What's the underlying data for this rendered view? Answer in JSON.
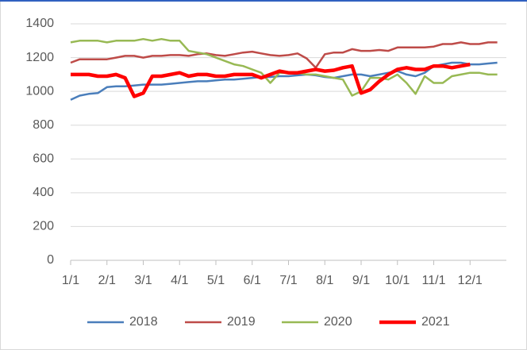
{
  "chart_data": {
    "type": "line",
    "categories": [
      "1/1",
      null,
      null,
      null,
      "2/1",
      null,
      null,
      null,
      "3/1",
      null,
      null,
      null,
      "4/1",
      null,
      null,
      null,
      "5/1",
      null,
      null,
      null,
      "6/1",
      null,
      null,
      null,
      "7/1",
      null,
      null,
      null,
      "8/1",
      null,
      null,
      null,
      "9/1",
      null,
      null,
      null,
      "10/1",
      null,
      null,
      null,
      "11/1",
      null,
      null,
      null,
      "12/1",
      null,
      null,
      null
    ],
    "series": [
      {
        "name": "2018",
        "color": "#4a7ebb",
        "line_width": 2.5,
        "values": [
          950,
          975,
          985,
          990,
          1025,
          1030,
          1030,
          1035,
          1040,
          1040,
          1040,
          1045,
          1050,
          1055,
          1060,
          1060,
          1065,
          1070,
          1070,
          1075,
          1080,
          1085,
          1085,
          1090,
          1090,
          1095,
          1100,
          1095,
          1085,
          1080,
          1090,
          1100,
          1100,
          1090,
          1100,
          1110,
          1120,
          1100,
          1090,
          1110,
          1150,
          1160,
          1170,
          1170,
          1160,
          1160,
          1165,
          1170
        ]
      },
      {
        "name": "2019",
        "color": "#be4b48",
        "line_width": 2.5,
        "values": [
          1170,
          1190,
          1190,
          1190,
          1190,
          1200,
          1210,
          1210,
          1200,
          1210,
          1210,
          1215,
          1215,
          1210,
          1220,
          1225,
          1215,
          1210,
          1220,
          1230,
          1235,
          1225,
          1215,
          1210,
          1215,
          1225,
          1195,
          1140,
          1220,
          1230,
          1230,
          1250,
          1240,
          1240,
          1245,
          1240,
          1260,
          1260,
          1260,
          1260,
          1265,
          1280,
          1280,
          1290,
          1280,
          1280,
          1290,
          1290
        ]
      },
      {
        "name": "2020",
        "color": "#98b954",
        "line_width": 2.5,
        "values": [
          1290,
          1300,
          1300,
          1300,
          1290,
          1300,
          1300,
          1300,
          1310,
          1300,
          1310,
          1300,
          1300,
          1240,
          1230,
          1220,
          1200,
          1180,
          1160,
          1150,
          1130,
          1110,
          1050,
          1110,
          1110,
          1110,
          1100,
          1100,
          1090,
          1080,
          1070,
          975,
          1000,
          1080,
          1080,
          1070,
          1100,
          1050,
          985,
          1090,
          1050,
          1050,
          1090,
          1100,
          1110,
          1110,
          1100,
          1100
        ]
      },
      {
        "name": "2021",
        "color": "#ff0000",
        "line_width": 4.5,
        "values": [
          1100,
          1100,
          1100,
          1090,
          1090,
          1100,
          1080,
          970,
          990,
          1090,
          1090,
          1100,
          1110,
          1090,
          1100,
          1100,
          1090,
          1090,
          1100,
          1100,
          1100,
          1080,
          1100,
          1120,
          1110,
          1110,
          1120,
          1130,
          1120,
          1125,
          1140,
          1150,
          990,
          1010,
          1060,
          1100,
          1130,
          1140,
          1130,
          1130,
          1150,
          1150,
          1140,
          1150,
          1160,
          null,
          null,
          null
        ]
      }
    ],
    "ylim": [
      0,
      1400
    ],
    "yticks": [
      0,
      200,
      400,
      600,
      800,
      1000,
      1200,
      1400
    ],
    "grid": true,
    "legend": "bottom"
  }
}
